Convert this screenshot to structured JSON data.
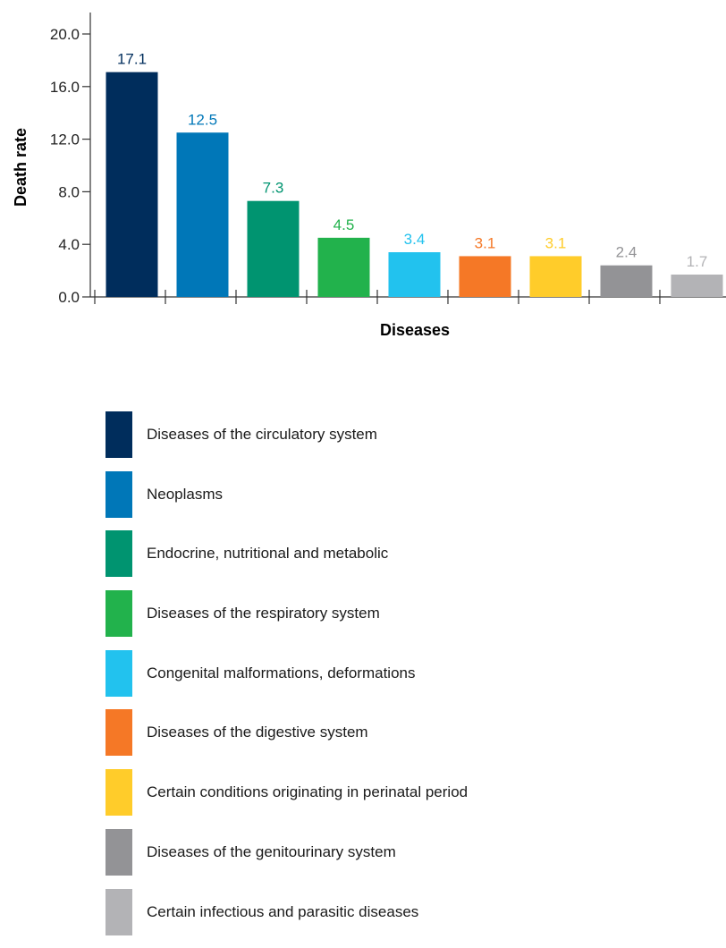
{
  "chart_data": {
    "type": "bar",
    "categories": [
      "Diseases of the circulatory system",
      "Neoplasms",
      "Endocrine, nutritional and metabolic",
      "Diseases of the respiratory system",
      "Congenital malformations, deformations",
      "Diseases of the digestive system",
      "Certain conditions originating in perinatal period",
      "Diseases of the genitourinary system",
      "Certain infectious and parasitic diseases"
    ],
    "values": [
      17.1,
      12.5,
      7.3,
      4.5,
      3.4,
      3.1,
      3.1,
      2.4,
      1.7
    ],
    "value_labels": [
      "17.1",
      "12.5",
      "7.3",
      "4.5",
      "3.4",
      "3.1",
      "3.1",
      "2.4",
      "1.7"
    ],
    "colors": [
      "#002d5c",
      "#0077b8",
      "#009470",
      "#22b24c",
      "#22c2ee",
      "#f57826",
      "#ffcc2a",
      "#939396",
      "#b3b3b6"
    ],
    "label_colors": [
      "#002d5c",
      "#0077b8",
      "#009470",
      "#22b24c",
      "#22c2ee",
      "#f57826",
      "#ffcc2a",
      "#939396",
      "#b3b3b6"
    ],
    "xlabel": "Diseases",
    "ylabel": "Death rate",
    "ylim": [
      0,
      20
    ],
    "yticks": [
      0,
      4,
      8,
      12,
      16,
      20
    ],
    "ytick_labels": [
      "0.0",
      "4.0",
      "8.0",
      "12.0",
      "16.0",
      "20.0"
    ],
    "legend_position": "bottom",
    "grid": false
  }
}
